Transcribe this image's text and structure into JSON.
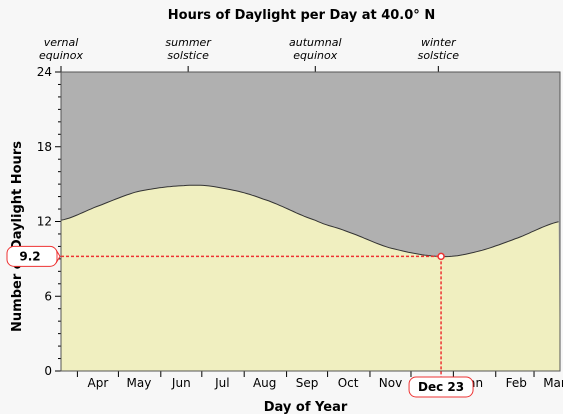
{
  "chart_data": {
    "type": "area",
    "title": "Hours of Daylight per Day at 40.0° N",
    "xlabel": "Day of Year",
    "ylabel": "Number of Daylight Hours",
    "ylim": [
      0,
      24
    ],
    "yticks": [
      0,
      6,
      12,
      18,
      24
    ],
    "grid": false,
    "month_labels": [
      "Apr",
      "May",
      "Jun",
      "Jul",
      "Aug",
      "Sep",
      "Oct",
      "Nov",
      "Dec 23",
      "Jan",
      "Feb",
      "Mar"
    ],
    "season_markers": [
      {
        "line1": "vernal",
        "line2": "equinox",
        "date": "Mar 20"
      },
      {
        "line1": "summer",
        "line2": "solstice",
        "date": "Jun 21"
      },
      {
        "line1": "autumnal",
        "line2": "equinox",
        "date": "Sep 22"
      },
      {
        "line1": "winter",
        "line2": "solstice",
        "date": "Dec 21"
      }
    ],
    "series": [
      {
        "x": [
          "Mar 20",
          "Apr 15",
          "May 15",
          "Jun 21",
          "Jul 15",
          "Aug 15",
          "Sep 22",
          "Oct 15",
          "Nov 15",
          "Dec 21",
          "Jan 15",
          "Feb 15",
          "Mar 19"
        ],
        "values": [
          12.1,
          13.2,
          14.4,
          14.9,
          14.7,
          13.8,
          12.1,
          11.2,
          9.9,
          9.2,
          9.5,
          10.6,
          12.0
        ]
      }
    ],
    "highlight": {
      "date_label": "Dec 23",
      "value_label": "9.2",
      "value": 9.2
    },
    "colors": {
      "day": "#f0efc0",
      "night": "#b0b0b0",
      "highlight": "#ee3333"
    }
  }
}
